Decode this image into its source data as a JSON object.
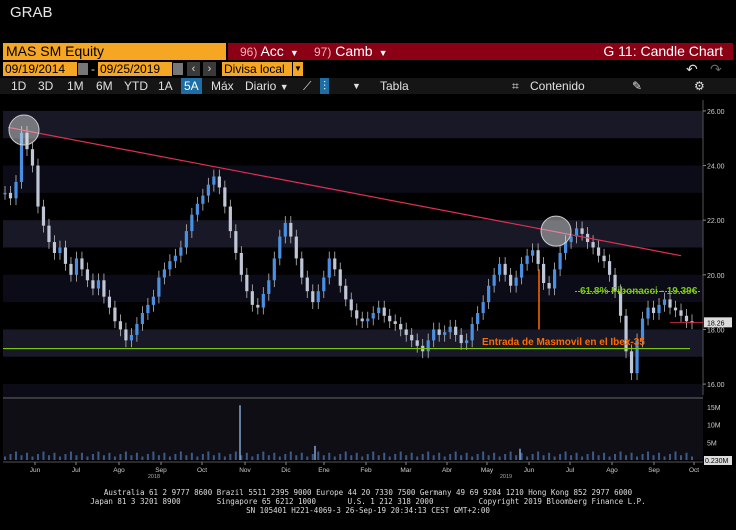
{
  "window": {
    "title": "GRAB"
  },
  "header": {
    "ticker": "MAS SM Equity",
    "menus": [
      {
        "num": "96)",
        "label": "Acc"
      },
      {
        "num": "97)",
        "label": "Camb"
      }
    ],
    "chart_name": "G 11: Candle Chart"
  },
  "range": {
    "start": "09/19/2014",
    "separator": "-",
    "end": "09/25/2019",
    "currency": "Divisa local"
  },
  "toolbar": {
    "periods": [
      "1D",
      "3D",
      "1M",
      "6M",
      "YTD",
      "1A",
      "5A",
      "Máx"
    ],
    "active_period": "5A",
    "frequency": "Diario",
    "table_label": "Tabla",
    "content_label": "Contenido"
  },
  "chart_data": {
    "type": "candlestick",
    "title": "",
    "x_ticks": [
      "Jun",
      "Jul",
      "Ago",
      "Sep",
      "Oct",
      "Nov",
      "Dic",
      "Ene",
      "Feb",
      "Mar",
      "Abr",
      "May",
      "Jun",
      "Jul",
      "Ago",
      "Sep",
      "Oct"
    ],
    "year_labels": [
      "2018",
      "2019"
    ],
    "y_ticks": [
      "26.00",
      "24.00",
      "22.00",
      "20.00",
      "18.00",
      "16.00"
    ],
    "ylim": [
      15.6,
      26.4
    ],
    "volume_ticks": [
      "15M",
      "10M",
      "5M"
    ],
    "last_price": "18.26",
    "last_volume": "0.230M",
    "annotations": {
      "fibonacci": "61.8% Fibonacci - 19.39€",
      "entry": "Entrada de Masmovil en el Ibex-35"
    },
    "series": [
      {
        "values": [
          23.0,
          22.8,
          23.4,
          25.2,
          24.6,
          24.0,
          22.5,
          21.8,
          21.2,
          20.8,
          21.0,
          20.4,
          20.0,
          20.6,
          20.2,
          19.8,
          19.5,
          19.8,
          19.2,
          18.8,
          18.3,
          18.0,
          17.6,
          17.8,
          18.2,
          18.6,
          18.9,
          19.2,
          19.9,
          20.2,
          20.5,
          20.7,
          21.0,
          21.6,
          22.2,
          22.6,
          22.9,
          23.3,
          23.6,
          23.2,
          22.5,
          21.6,
          20.8,
          20.0,
          19.4,
          18.9,
          18.8,
          19.3,
          19.8,
          20.6,
          21.4,
          21.9,
          21.4,
          20.6,
          19.9,
          19.4,
          19.0,
          19.4,
          19.9,
          20.6,
          20.2,
          19.6,
          19.1,
          18.7,
          18.4,
          18.3,
          18.4,
          18.6,
          18.8,
          18.5,
          18.3,
          18.2,
          18.0,
          17.8,
          17.6,
          17.4,
          17.2,
          17.6,
          18.0,
          17.8,
          17.9,
          18.1,
          17.8,
          17.5,
          17.6,
          18.2,
          18.6,
          19.0,
          19.6,
          20.0,
          20.4,
          20.0,
          19.6,
          19.9,
          20.4,
          20.7,
          20.9,
          20.4,
          19.7,
          19.5,
          20.2,
          20.8,
          21.2,
          21.4,
          21.7,
          21.5,
          21.2,
          21.0,
          20.7,
          20.5,
          20.0,
          19.4,
          18.5,
          17.2,
          16.4,
          17.6,
          18.4,
          18.8,
          18.6,
          18.9,
          19.1,
          18.8,
          18.7,
          18.5,
          18.3,
          18.26
        ],
        "volume_spikes": [
          {
            "month": "Oct",
            "value": 15.5
          },
          {
            "month": "Ene",
            "value": 4.0
          },
          {
            "month": "Jun",
            "value": 3.2
          }
        ]
      }
    ],
    "trendline": {
      "from": 25.4,
      "to": 20.7
    },
    "support": 17.3
  },
  "footer": {
    "line1": "Australia 61 2 9777 8600 Brazil 5511 2395 9000 Europe 44 20 7330 7500 Germany 49 69 9204 1210 Hong Kong 852 2977 6000",
    "line2": "Japan 81 3 3201 8900        Singapore 65 6212 1000       U.S. 1 212 318 2000          Copyright 2019 Bloomberg Finance L.P.",
    "line3": "SN 105401 H221-4069-3 26-Sep-19 20:34:13 CEST GMT+2:00"
  },
  "colors": {
    "accent": "#f5a623",
    "bar": "#8b0015",
    "candle": "#4a90e2",
    "trend": "#e03050",
    "support": "#7ac70c",
    "annotation": "#ff6a00"
  }
}
